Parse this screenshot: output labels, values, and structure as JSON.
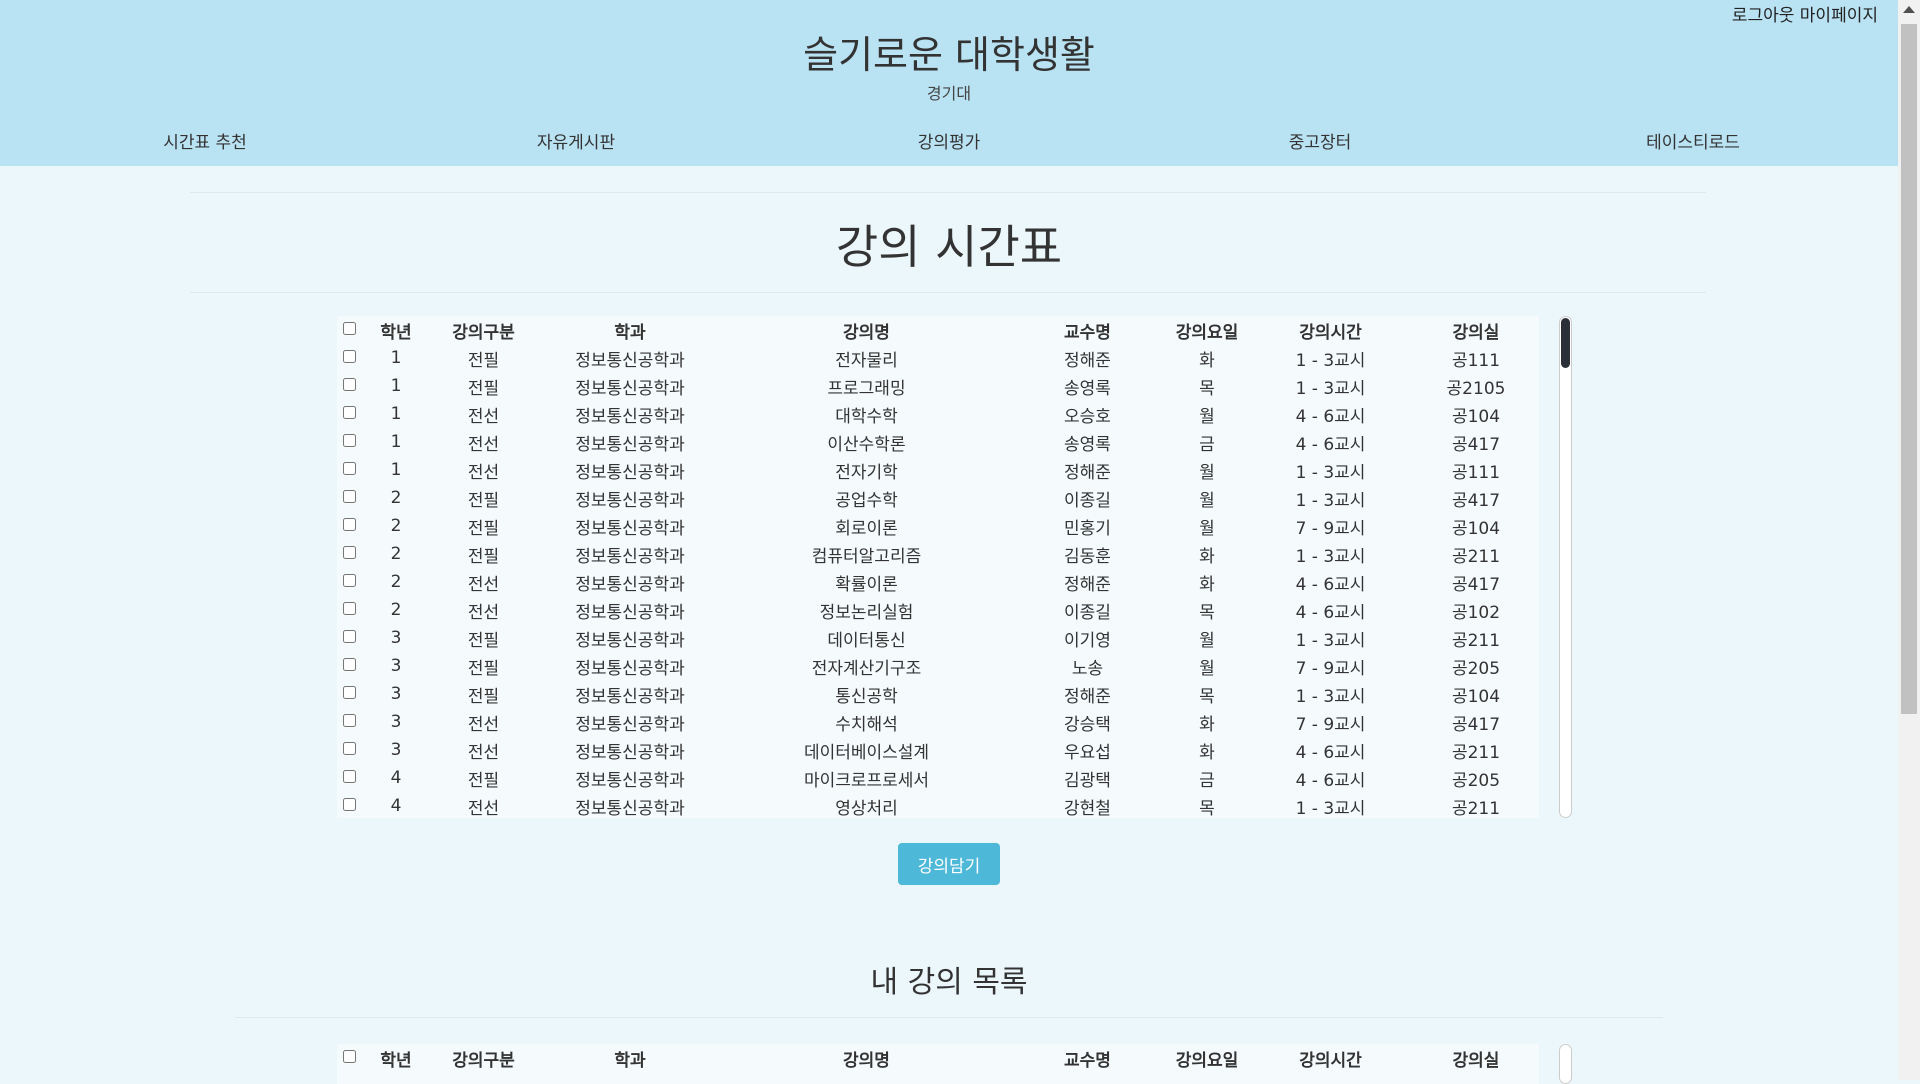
{
  "header": {
    "logout": "로그아웃",
    "mypage": "마이페이지",
    "title": "슬기로운 대학생활",
    "subtitle": "경기대"
  },
  "nav": {
    "items": [
      {
        "label": "시간표 추천"
      },
      {
        "label": "자유게시판"
      },
      {
        "label": "강의평가"
      },
      {
        "label": "중고장터"
      },
      {
        "label": "테이스티로드"
      }
    ]
  },
  "timetable": {
    "title": "강의 시간표",
    "columns": [
      "학년",
      "강의구분",
      "학과",
      "강의명",
      "교수명",
      "강의요일",
      "강의시간",
      "강의실"
    ],
    "rows": [
      [
        "1",
        "전필",
        "정보통신공학과",
        "전자물리",
        "정해준",
        "화",
        "1 - 3교시",
        "공111"
      ],
      [
        "1",
        "전필",
        "정보통신공학과",
        "프로그래밍",
        "송영록",
        "목",
        "1 - 3교시",
        "공2105"
      ],
      [
        "1",
        "전선",
        "정보통신공학과",
        "대학수학",
        "오승호",
        "월",
        "4 - 6교시",
        "공104"
      ],
      [
        "1",
        "전선",
        "정보통신공학과",
        "이산수학론",
        "송영록",
        "금",
        "4 - 6교시",
        "공417"
      ],
      [
        "1",
        "전선",
        "정보통신공학과",
        "전자기학",
        "정해준",
        "월",
        "1 - 3교시",
        "공111"
      ],
      [
        "2",
        "전필",
        "정보통신공학과",
        "공업수학",
        "이종길",
        "월",
        "1 - 3교시",
        "공417"
      ],
      [
        "2",
        "전필",
        "정보통신공학과",
        "회로이론",
        "민홍기",
        "월",
        "7 - 9교시",
        "공104"
      ],
      [
        "2",
        "전필",
        "정보통신공학과",
        "컴퓨터알고리즘",
        "김동훈",
        "화",
        "1 - 3교시",
        "공211"
      ],
      [
        "2",
        "전선",
        "정보통신공학과",
        "확률이론",
        "정해준",
        "화",
        "4 - 6교시",
        "공417"
      ],
      [
        "2",
        "전선",
        "정보통신공학과",
        "정보논리실험",
        "이종길",
        "목",
        "4 - 6교시",
        "공102"
      ],
      [
        "3",
        "전필",
        "정보통신공학과",
        "데이터통신",
        "이기영",
        "월",
        "1 - 3교시",
        "공211"
      ],
      [
        "3",
        "전필",
        "정보통신공학과",
        "전자계산기구조",
        "노송",
        "월",
        "7 - 9교시",
        "공205"
      ],
      [
        "3",
        "전필",
        "정보통신공학과",
        "통신공학",
        "정해준",
        "목",
        "1 - 3교시",
        "공104"
      ],
      [
        "3",
        "전선",
        "정보통신공학과",
        "수치해석",
        "강승택",
        "화",
        "7 - 9교시",
        "공417"
      ],
      [
        "3",
        "전선",
        "정보통신공학과",
        "데이터베이스설계",
        "우요섭",
        "화",
        "4 - 6교시",
        "공211"
      ],
      [
        "4",
        "전필",
        "정보통신공학과",
        "마이크로프로세서",
        "김광택",
        "금",
        "4 - 6교시",
        "공205"
      ],
      [
        "4",
        "전선",
        "정보통신공학과",
        "영상처리",
        "강현철",
        "목",
        "1 - 3교시",
        "공211"
      ]
    ],
    "add_button": "강의담기"
  },
  "my_courses": {
    "title": "내 강의 목록",
    "columns": [
      "학년",
      "강의구분",
      "학과",
      "강의명",
      "교수명",
      "강의요일",
      "강의시간",
      "강의실"
    ]
  }
}
